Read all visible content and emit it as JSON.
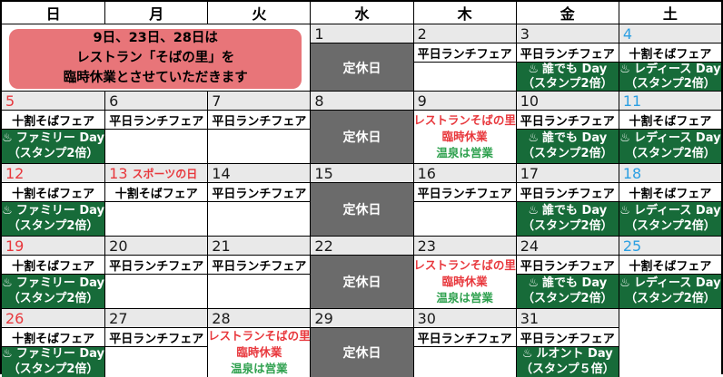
{
  "colors": {
    "grid_border": "#000000",
    "day_number_strip_bg": "#e9e9e9",
    "closed_cell_bg": "#6b6b6b",
    "event_green_bg": "#176b39",
    "notice_pink_bg": "#e87579",
    "sunday_and_holiday_red": "#e8383d",
    "saturday_blue": "#2b9fe2",
    "restaurant_closed_red": "#e8383d",
    "onsen_open_green": "#2fa14f"
  },
  "weekday_header": [
    "日",
    "月",
    "火",
    "水",
    "木",
    "金",
    "土"
  ],
  "notice": {
    "line1": "9日、23日、28日は",
    "line2": "レストラン「そばの里」を",
    "line3": "臨時休業とさせていただきます"
  },
  "labels": {
    "closed": "定休日",
    "hot_spring_icon": "♨"
  },
  "restaurant_notice": {
    "line1": "レストランそばの里",
    "line2": "臨時休業",
    "line3": "温泉は営業"
  },
  "weeks": [
    {
      "days": [
        {
          "number": "1",
          "type": "closed"
        },
        {
          "number": "2",
          "type": "normal",
          "fair": "平日ランチフェア"
        },
        {
          "number": "3",
          "type": "normal",
          "fair": "平日ランチフェア",
          "event": {
            "name": "誰でも Day",
            "stamp": "（スタンプ2倍）"
          }
        },
        {
          "number": "4",
          "type": "normal",
          "fair": "十割そばフェア",
          "event": {
            "name": "レディース Day",
            "stamp": "（スタンプ2倍）"
          }
        }
      ]
    },
    {
      "days": [
        {
          "number": "5",
          "type": "normal",
          "fair": "十割そばフェア",
          "event": {
            "name": "ファミリー Day",
            "stamp": "（スタンプ2倍）"
          }
        },
        {
          "number": "6",
          "type": "normal",
          "fair": "平日ランチフェア"
        },
        {
          "number": "7",
          "type": "normal",
          "fair": "平日ランチフェア"
        },
        {
          "number": "8",
          "type": "closed"
        },
        {
          "number": "9",
          "type": "restaurant"
        },
        {
          "number": "10",
          "type": "normal",
          "fair": "平日ランチフェア",
          "event": {
            "name": "誰でも Day",
            "stamp": "（スタンプ2倍）"
          }
        },
        {
          "number": "11",
          "type": "normal",
          "fair": "十割そばフェア",
          "event": {
            "name": "レディース Day",
            "stamp": "（スタンプ2倍）"
          }
        }
      ]
    },
    {
      "days": [
        {
          "number": "12",
          "type": "normal",
          "fair": "十割そばフェア",
          "event": {
            "name": "ファミリー Day",
            "stamp": "（スタンプ2倍）"
          }
        },
        {
          "number": "13",
          "type": "normal",
          "holiday": "スポーツの日",
          "fair": "十割そばフェア"
        },
        {
          "number": "14",
          "type": "normal",
          "fair": "平日ランチフェア"
        },
        {
          "number": "15",
          "type": "closed"
        },
        {
          "number": "16",
          "type": "normal",
          "fair": "平日ランチフェア"
        },
        {
          "number": "17",
          "type": "normal",
          "fair": "平日ランチフェア",
          "event": {
            "name": "誰でも Day",
            "stamp": "（スタンプ2倍）"
          }
        },
        {
          "number": "18",
          "type": "normal",
          "fair": "十割そばフェア",
          "event": {
            "name": "レディース Day",
            "stamp": "（スタンプ2倍）"
          }
        }
      ]
    },
    {
      "days": [
        {
          "number": "19",
          "type": "normal",
          "fair": "十割そばフェア",
          "event": {
            "name": "ファミリー Day",
            "stamp": "（スタンプ2倍）"
          }
        },
        {
          "number": "20",
          "type": "normal",
          "fair": "平日ランチフェア"
        },
        {
          "number": "21",
          "type": "normal",
          "fair": "平日ランチフェア"
        },
        {
          "number": "22",
          "type": "closed"
        },
        {
          "number": "23",
          "type": "restaurant"
        },
        {
          "number": "24",
          "type": "normal",
          "fair": "平日ランチフェア",
          "event": {
            "name": "誰でも Day",
            "stamp": "（スタンプ2倍）"
          }
        },
        {
          "number": "25",
          "type": "normal",
          "fair": "十割そばフェア",
          "event": {
            "name": "レディース Day",
            "stamp": "（スタンプ2倍）"
          }
        }
      ]
    },
    {
      "days": [
        {
          "number": "26",
          "type": "normal",
          "fair": "十割そばフェア",
          "event": {
            "name": "ファミリー Day",
            "stamp": "（スタンプ2倍）"
          }
        },
        {
          "number": "27",
          "type": "normal",
          "fair": "平日ランチフェア"
        },
        {
          "number": "28",
          "type": "restaurant"
        },
        {
          "number": "29",
          "type": "closed"
        },
        {
          "number": "30",
          "type": "normal",
          "fair": "平日ランチフェア"
        },
        {
          "number": "31",
          "type": "normal",
          "fair": "平日ランチフェア",
          "event": {
            "name": "ルオント Day",
            "stamp": "（スタンプ５倍）"
          }
        },
        {
          "type": "empty"
        }
      ]
    }
  ]
}
